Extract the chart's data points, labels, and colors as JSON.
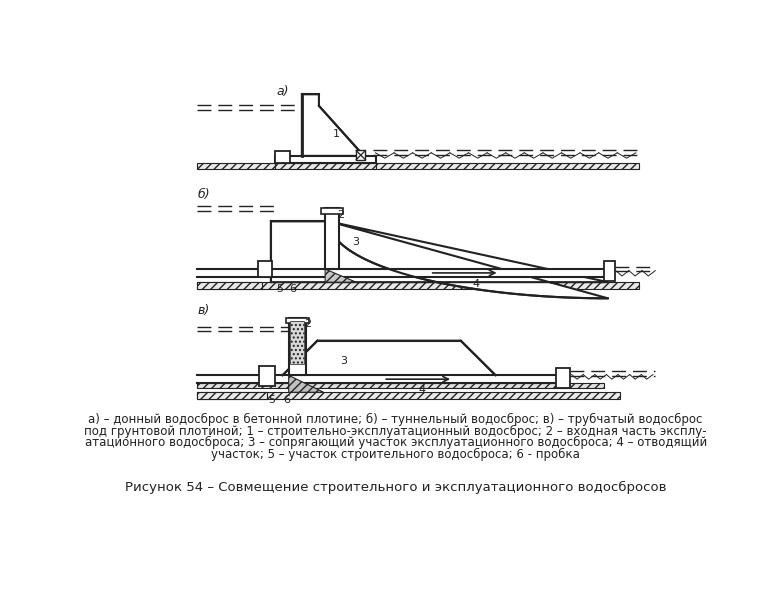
{
  "bg_color": "#ffffff",
  "lc": "#222222",
  "title": "Рисунок 54 – Совмещение строительного и эксплуатационного водосбросов",
  "cap1": "а) – донный водосброс в бетонной плотине; б) – туннельный водосброс; в) – трубчатый водосброс",
  "cap2": "под грунтовой плотиной; 1 – строительно-эксплуатационный водосброс; 2 – входная часть эксплу-",
  "cap3": "атационного водосброса; 3 – сопрягающий участок эксплуатационного водосброса; 4 – отводящий",
  "cap4": "участок; 5 – участок строительного водосброса; 6 - пробка",
  "la": "а)",
  "lb": "б)",
  "lv": "в)"
}
